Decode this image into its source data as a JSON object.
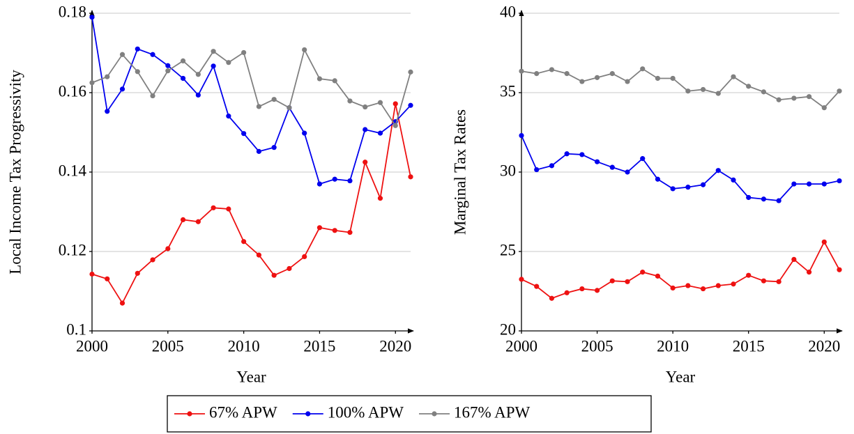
{
  "chart_data": [
    {
      "type": "line",
      "x_label": "Year",
      "y_label": "Local Income Tax Progressivity",
      "x": [
        2000,
        2001,
        2002,
        2003,
        2004,
        2005,
        2006,
        2007,
        2008,
        2009,
        2010,
        2011,
        2012,
        2013,
        2014,
        2015,
        2016,
        2017,
        2018,
        2019,
        2020,
        2021
      ],
      "xlim": [
        2000,
        2021
      ],
      "xticks": [
        2000,
        2005,
        2010,
        2015,
        2020
      ],
      "ylim": [
        0.1,
        0.18
      ],
      "yticks": [
        0.1,
        0.12,
        0.14,
        0.16,
        0.18
      ],
      "grid": true,
      "series": [
        {
          "name": "67% APW",
          "color": "#ee1111",
          "values": [
            0.1143,
            0.1131,
            0.107,
            0.1145,
            0.1179,
            0.1207,
            0.128,
            0.1275,
            0.131,
            0.1307,
            0.1225,
            0.1191,
            0.114,
            0.1157,
            0.1187,
            0.126,
            0.1253,
            0.1248,
            0.1425,
            0.1334,
            0.1572,
            0.1388
          ]
        },
        {
          "name": "100% APW",
          "color": "#0000ee",
          "values": [
            0.179,
            0.1553,
            0.1609,
            0.171,
            0.1696,
            0.1668,
            0.1636,
            0.1594,
            0.1667,
            0.1541,
            0.1497,
            0.1452,
            0.1462,
            0.1562,
            0.1498,
            0.137,
            0.1382,
            0.1378,
            0.1507,
            0.1498,
            0.1527,
            0.1568
          ]
        },
        {
          "name": "167% APW",
          "color": "#808080",
          "values": [
            0.1625,
            0.164,
            0.1696,
            0.1653,
            0.1592,
            0.1655,
            0.168,
            0.1646,
            0.1704,
            0.1676,
            0.1701,
            0.1565,
            0.1583,
            0.1562,
            0.1708,
            0.1635,
            0.163,
            0.1579,
            0.1564,
            0.1575,
            0.1517,
            0.1652
          ]
        }
      ]
    },
    {
      "type": "line",
      "x_label": "Year",
      "y_label": "Marginal Tax Rates",
      "x": [
        2000,
        2001,
        2002,
        2003,
        2004,
        2005,
        2006,
        2007,
        2008,
        2009,
        2010,
        2011,
        2012,
        2013,
        2014,
        2015,
        2016,
        2017,
        2018,
        2019,
        2020,
        2021
      ],
      "xlim": [
        2000,
        2021
      ],
      "xticks": [
        2000,
        2005,
        2010,
        2015,
        2020
      ],
      "ylim": [
        20,
        40
      ],
      "yticks": [
        20,
        25,
        30,
        35,
        40
      ],
      "grid": true,
      "series": [
        {
          "color": "#ee1111",
          "values": [
            23.25,
            22.8,
            22.05,
            22.4,
            22.65,
            22.55,
            23.15,
            23.1,
            23.7,
            23.45,
            22.7,
            22.85,
            22.65,
            22.85,
            22.95,
            23.5,
            23.15,
            23.1,
            24.5,
            23.7,
            25.6,
            23.85
          ]
        },
        {
          "color": "#0000ee",
          "values": [
            32.3,
            30.15,
            30.4,
            31.15,
            31.1,
            30.65,
            30.3,
            30.0,
            30.85,
            29.55,
            28.95,
            29.05,
            29.2,
            30.1,
            29.5,
            28.4,
            28.3,
            28.2,
            29.25,
            29.25,
            29.25,
            29.45
          ]
        },
        {
          "color": "#808080",
          "values": [
            36.35,
            36.2,
            36.45,
            36.2,
            35.7,
            35.95,
            36.2,
            35.7,
            36.5,
            35.9,
            35.9,
            35.1,
            35.2,
            34.95,
            36.0,
            35.4,
            35.05,
            34.55,
            34.65,
            34.75,
            34.05,
            35.1
          ]
        }
      ]
    }
  ]
}
